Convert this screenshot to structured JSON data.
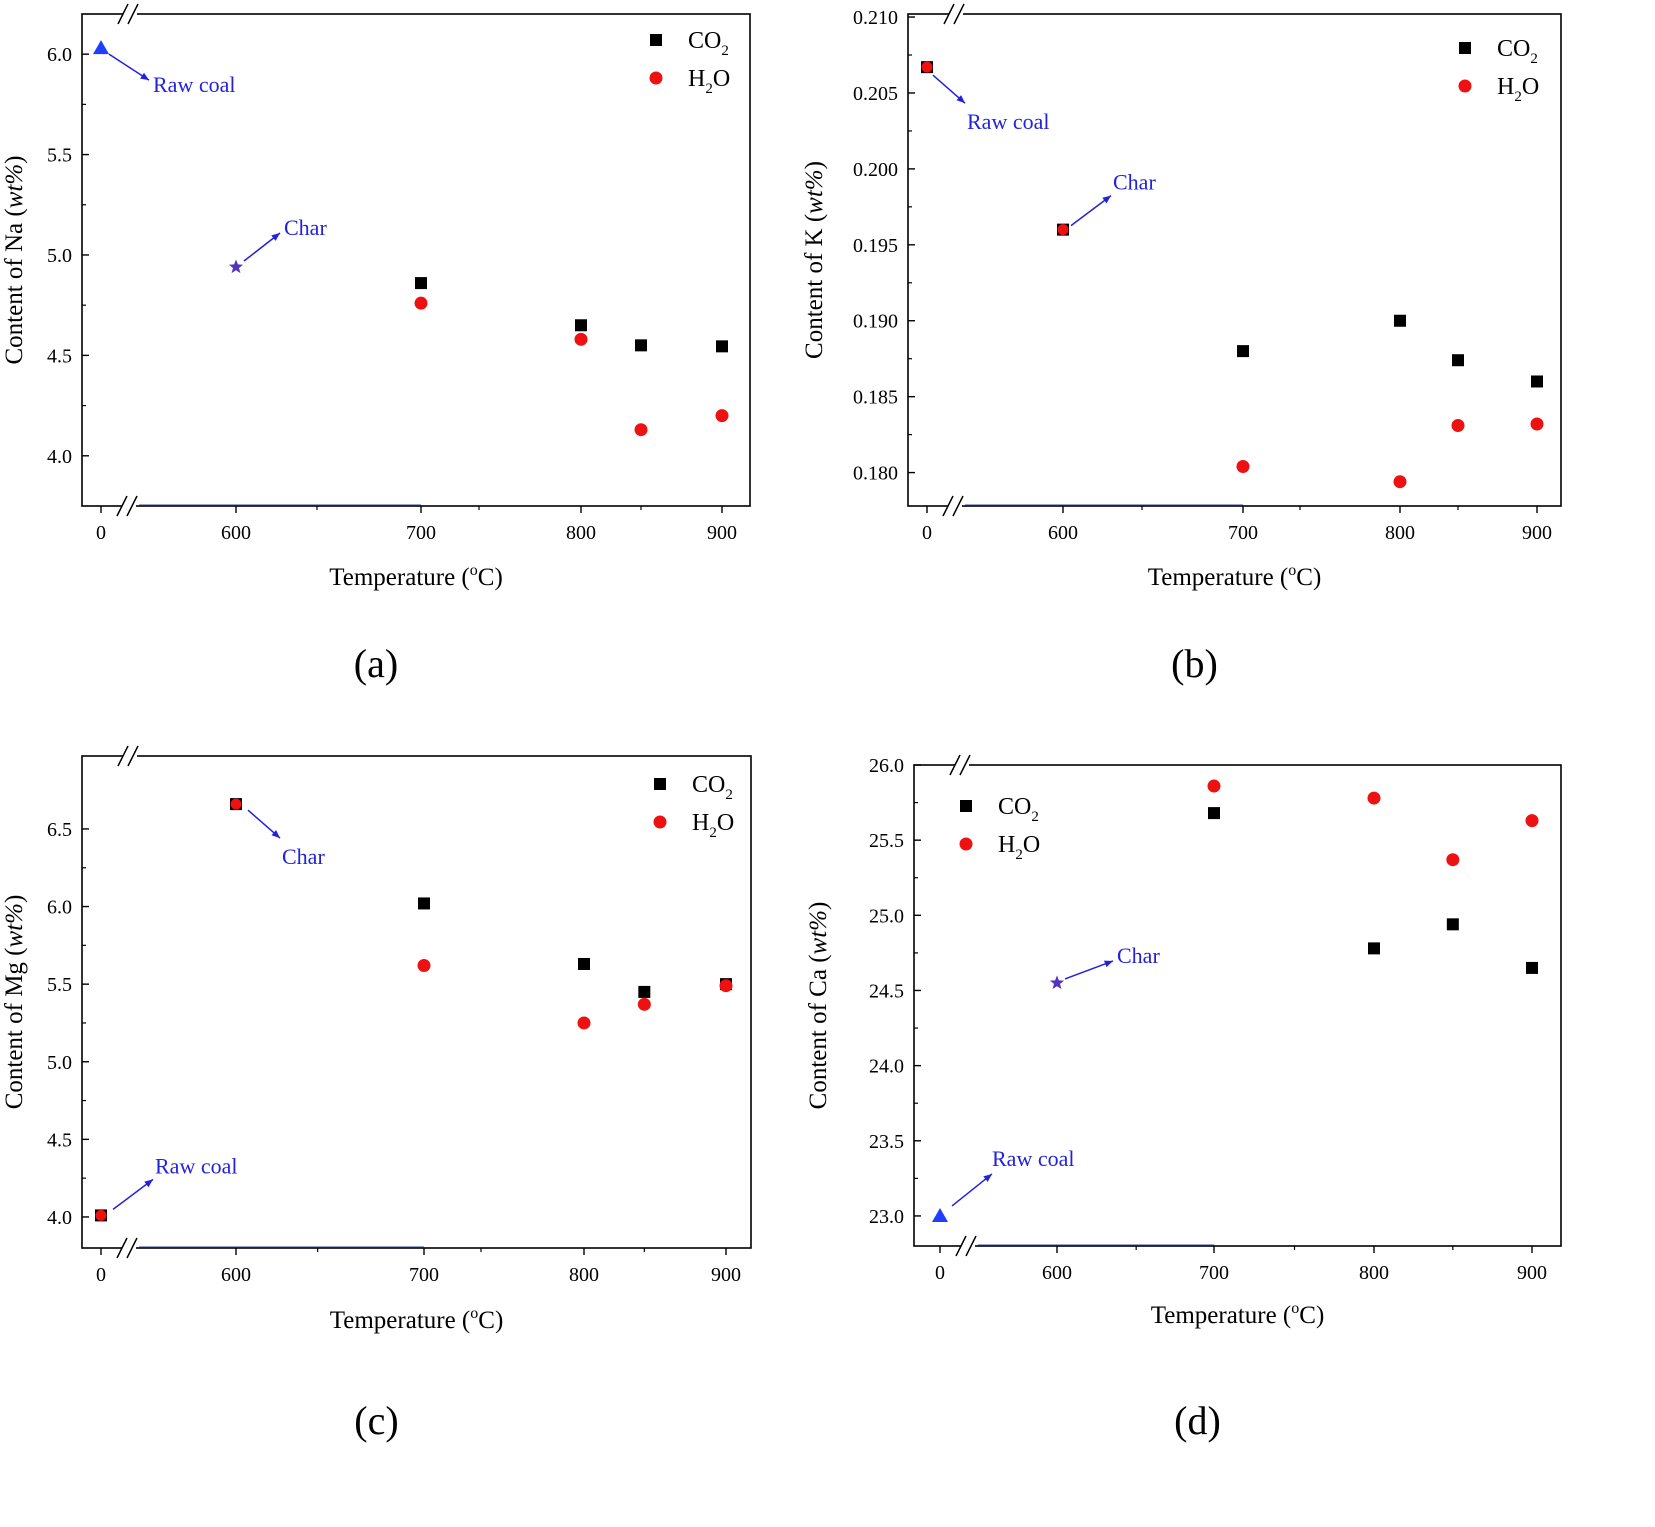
{
  "colors": {
    "co2": "#000000",
    "h2o": "#ee1111",
    "raw_coal": "#1f3fff",
    "char": "#5533bb",
    "annotation": "#2222dd"
  },
  "common": {
    "xlabel_main": "Temperature (",
    "xlabel_sup": "o",
    "xlabel_tail": "C)",
    "x_tick_labels": [
      "0",
      "600",
      "700",
      "800",
      "900"
    ]
  },
  "legend": {
    "co2_main": "CO",
    "co2_sub": "2",
    "h2o_main": "H",
    "h2o_sub": "2",
    "h2o_tail": "O"
  },
  "chart_data": [
    {
      "panel": "(a)",
      "type": "scatter",
      "element": "Na",
      "ylabel_prefix": "Content of Na (",
      "ylabel_italic": "wt%",
      "ylabel_suffix": ")",
      "ylim": [
        3.75,
        6.2
      ],
      "y_ticks": [
        "4.0",
        "4.5",
        "5.0",
        "5.5",
        "6.0"
      ],
      "x_broken_axis": true,
      "y_broken_axis": true,
      "legend_position": "top-right",
      "raw_coal": {
        "x": 0,
        "y": 6.03,
        "marker": "triangle",
        "label": "Raw coal"
      },
      "char": {
        "x": 600,
        "y": 4.94,
        "marker": "star",
        "label": "Char"
      },
      "series": [
        {
          "name": "CO2",
          "marker": "square",
          "points": [
            {
              "x": 700,
              "y": 4.86
            },
            {
              "x": 800,
              "y": 4.65
            },
            {
              "x": 850,
              "y": 4.55
            },
            {
              "x": 900,
              "y": 4.545
            }
          ]
        },
        {
          "name": "H2O",
          "marker": "circle",
          "points": [
            {
              "x": 700,
              "y": 4.76
            },
            {
              "x": 800,
              "y": 4.58
            },
            {
              "x": 850,
              "y": 4.13
            },
            {
              "x": 900,
              "y": 4.2
            }
          ]
        }
      ]
    },
    {
      "panel": "(b)",
      "type": "scatter",
      "element": "K",
      "ylabel_prefix": "Content of K (",
      "ylabel_italic": "wt%",
      "ylabel_suffix": ")",
      "ylim": [
        0.1778,
        0.2102
      ],
      "y_ticks": [
        "0.180",
        "0.185",
        "0.190",
        "0.195",
        "0.200",
        "0.205",
        "0.210"
      ],
      "x_broken_axis": true,
      "y_broken_axis": false,
      "legend_position": "top-right",
      "raw_coal": {
        "x": 0,
        "y": 0.2067,
        "marker": "square+circle",
        "label": "Raw coal"
      },
      "char": {
        "x": 600,
        "y": 0.196,
        "marker": "square+circle",
        "label": "Char"
      },
      "series": [
        {
          "name": "CO2",
          "marker": "square",
          "points": [
            {
              "x": 700,
              "y": 0.188
            },
            {
              "x": 800,
              "y": 0.19
            },
            {
              "x": 850,
              "y": 0.1874
            },
            {
              "x": 900,
              "y": 0.186
            }
          ]
        },
        {
          "name": "H2O",
          "marker": "circle",
          "points": [
            {
              "x": 700,
              "y": 0.1804
            },
            {
              "x": 800,
              "y": 0.1794
            },
            {
              "x": 850,
              "y": 0.1831
            },
            {
              "x": 900,
              "y": 0.1832
            }
          ]
        }
      ]
    },
    {
      "panel": "(c)",
      "type": "scatter",
      "element": "Mg",
      "ylabel_prefix": "Content of Mg (",
      "ylabel_italic": "wt%",
      "ylabel_suffix": ")",
      "ylim": [
        3.8,
        6.97
      ],
      "y_ticks": [
        "4.0",
        "4.5",
        "5.0",
        "5.5",
        "6.0",
        "6.5"
      ],
      "x_broken_axis": true,
      "y_broken_axis": true,
      "legend_position": "top-right",
      "raw_coal": {
        "x": 0,
        "y": 4.01,
        "marker": "square+circle",
        "label": "Raw coal"
      },
      "char": {
        "x": 600,
        "y": 6.66,
        "marker": "square+circle",
        "label": "Char"
      },
      "series": [
        {
          "name": "CO2",
          "marker": "square",
          "points": [
            {
              "x": 700,
              "y": 6.02
            },
            {
              "x": 800,
              "y": 5.63
            },
            {
              "x": 850,
              "y": 5.45
            },
            {
              "x": 900,
              "y": 5.5
            }
          ]
        },
        {
          "name": "H2O",
          "marker": "circle",
          "points": [
            {
              "x": 700,
              "y": 5.62
            },
            {
              "x": 800,
              "y": 5.25
            },
            {
              "x": 850,
              "y": 5.37
            },
            {
              "x": 900,
              "y": 5.49
            }
          ]
        }
      ]
    },
    {
      "panel": "(d)",
      "type": "scatter",
      "element": "Ca",
      "ylabel_prefix": "Content of Ca (",
      "ylabel_italic": "wt%",
      "ylabel_suffix": ")",
      "ylim": [
        22.8,
        26.0
      ],
      "y_ticks": [
        "23.0",
        "23.5",
        "24.0",
        "24.5",
        "25.0",
        "25.5",
        "26.0"
      ],
      "x_broken_axis": true,
      "y_broken_axis": false,
      "legend_position": "top-left",
      "raw_coal": {
        "x": 0,
        "y": 23.0,
        "marker": "triangle",
        "label": "Raw coal"
      },
      "char": {
        "x": 600,
        "y": 24.55,
        "marker": "star",
        "label": "Char"
      },
      "series": [
        {
          "name": "CO2",
          "marker": "square",
          "points": [
            {
              "x": 700,
              "y": 25.68
            },
            {
              "x": 800,
              "y": 24.78
            },
            {
              "x": 850,
              "y": 24.94
            },
            {
              "x": 900,
              "y": 24.65
            }
          ]
        },
        {
          "name": "H2O",
          "marker": "circle",
          "points": [
            {
              "x": 700,
              "y": 25.86
            },
            {
              "x": 800,
              "y": 25.78
            },
            {
              "x": 850,
              "y": 25.37
            },
            {
              "x": 900,
              "y": 25.63
            }
          ]
        }
      ]
    }
  ]
}
